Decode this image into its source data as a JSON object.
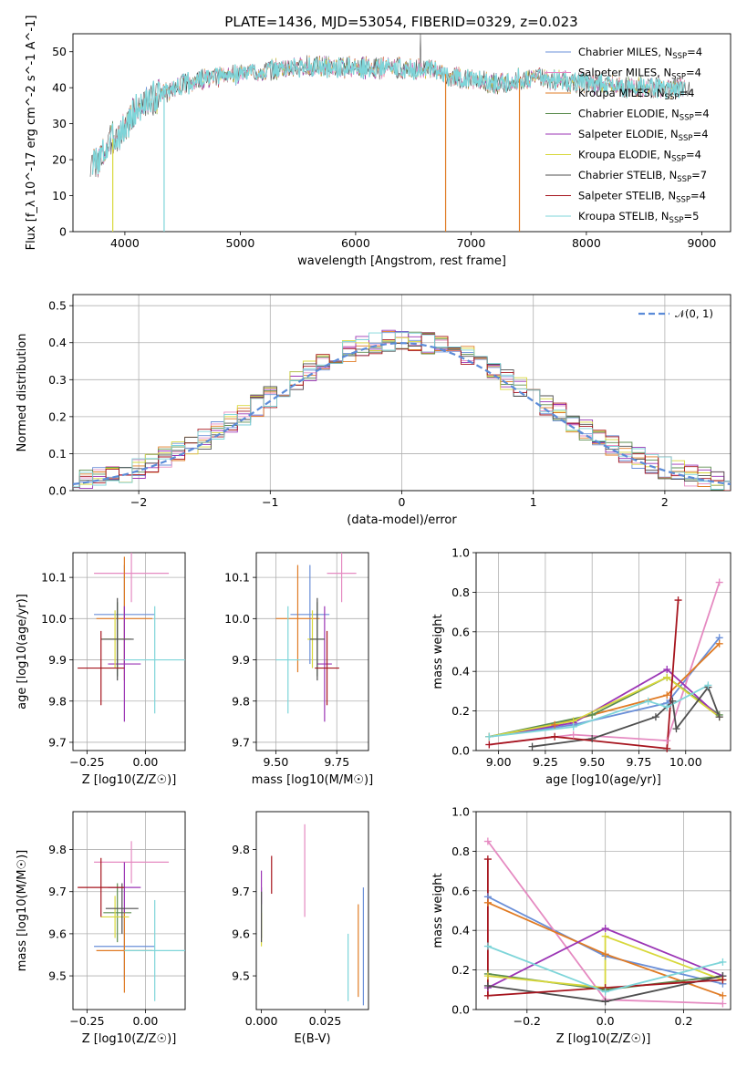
{
  "figure": {
    "title": "PLATE=1436, MJD=53054, FIBERID=0329, z=0.023"
  },
  "colors": [
    "#6a8fd8",
    "#e58ac1",
    "#e07b24",
    "#5c8d4f",
    "#9b35b5",
    "#d8d83c",
    "#4f4f4f",
    "#a6151e",
    "#7ed5d9"
  ],
  "chart_data": [
    {
      "id": "spectrum",
      "type": "line",
      "title": "PLATE=1436, MJD=53054, FIBERID=0329, z=0.023",
      "xlabel": "wavelength [Angstrom, rest frame]",
      "ylabel": "Flux [f_λ 10^-17 erg cm^-2 s^-1 A^-1]",
      "xlim": [
        3550,
        9250
      ],
      "ylim": [
        0,
        55
      ],
      "xticks": [
        4000,
        5000,
        6000,
        7000,
        8000,
        9000
      ],
      "yticks": [
        0,
        10,
        20,
        30,
        40,
        50
      ],
      "grid": false,
      "legend_position": "top-right",
      "series": [
        {
          "name": "Chabrier MILES, N_SSP=4",
          "legend_label": "Chabrier MILES, N",
          "legend_sub": "SSP",
          "legend_end": "=4"
        },
        {
          "name": "Salpeter MILES, N_SSP=4",
          "legend_label": "Salpeter MILES, N",
          "legend_sub": "SSP",
          "legend_end": "=4"
        },
        {
          "name": "Kroupa MILES, N_SSP=4",
          "legend_label": "Kroupa MILES, N",
          "legend_sub": "SSP",
          "legend_end": "=4"
        },
        {
          "name": "Chabrier ELODIE, N_SSP=4",
          "legend_label": "Chabrier ELODIE, N",
          "legend_sub": "SSP",
          "legend_end": "=4"
        },
        {
          "name": "Salpeter ELODIE, N_SSP=4",
          "legend_label": "Salpeter ELODIE, N",
          "legend_sub": "SSP",
          "legend_end": "=4"
        },
        {
          "name": "Kroupa ELODIE, N_SSP=4",
          "legend_label": "Kroupa ELODIE, N",
          "legend_sub": "SSP",
          "legend_end": "=4"
        },
        {
          "name": "Chabrier STELIB, N_SSP=7",
          "legend_label": "Chabrier STELIB, N",
          "legend_sub": "SSP",
          "legend_end": "=7"
        },
        {
          "name": "Salpeter STELIB, N_SSP=4",
          "legend_label": "Salpeter STELIB, N",
          "legend_sub": "SSP",
          "legend_end": "=4"
        },
        {
          "name": "Kroupa STELIB, N_SSP=5",
          "legend_label": "Kroupa STELIB, N",
          "legend_sub": "SSP",
          "legend_end": "=5"
        }
      ],
      "continuum": {
        "x": [
          3700,
          3800,
          3900,
          4000,
          4100,
          4300,
          4500,
          4800,
          5000,
          5300,
          5600,
          6000,
          6300,
          6600,
          6900,
          7200,
          7500,
          7800,
          8100,
          8400,
          8700,
          9000
        ],
        "y": [
          18,
          21,
          26,
          29,
          34,
          38,
          41,
          43,
          44,
          45,
          46,
          45.5,
          45.5,
          45,
          43,
          41,
          43,
          42,
          41,
          40,
          40,
          40
        ]
      },
      "dips": [
        {
          "x": 3895,
          "y": 0,
          "series": 5
        },
        {
          "x": 4340,
          "y": 0,
          "series": 8
        },
        {
          "x": 6780,
          "y": 0,
          "series": 2
        },
        {
          "x": 7420,
          "y": 0,
          "series": 2
        }
      ],
      "peak": {
        "x": 6590,
        "y": 55
      }
    },
    {
      "id": "residual_histogram",
      "type": "bar",
      "xlabel": "(data-model)/error",
      "ylabel": "Normed distribution",
      "xlim": [
        -2.5,
        2.5
      ],
      "ylim": [
        0,
        0.53
      ],
      "xticks": [
        -2,
        -1,
        0,
        1,
        2
      ],
      "yticks": [
        0.0,
        0.1,
        0.2,
        0.3,
        0.4,
        0.5
      ],
      "grid": true,
      "legend_position": "top-right",
      "reference_curve": {
        "name": "N(0,1)",
        "label": "𝒩(0, 1)",
        "mean": 0,
        "sigma": 1
      },
      "bin_width": 0.1,
      "bin_centers_range": [
        -2.5,
        2.5
      ],
      "series_note": "nine histograms, one per SSP model, same colours as spectrum"
    },
    {
      "id": "age_vs_Z",
      "type": "scatter",
      "xlabel": "Z [log10(Z/Z☉)]",
      "ylabel": "age [log10(age/yr)]",
      "xlim": [
        -0.31,
        0.17
      ],
      "ylim": [
        9.68,
        10.16
      ],
      "xticks": [
        -0.25,
        0.0
      ],
      "yticks": [
        9.7,
        9.8,
        9.9,
        10.0,
        10.1
      ],
      "grid": true,
      "points": [
        {
          "x": -0.09,
          "y": 10.01,
          "xerr": 0.13,
          "yerr": 0.12,
          "series": 0
        },
        {
          "x": -0.06,
          "y": 10.11,
          "xerr": 0.16,
          "yerr": 0.07,
          "series": 1
        },
        {
          "x": -0.09,
          "y": 10.0,
          "xerr": 0.12,
          "yerr": 0.15,
          "series": 2
        },
        {
          "x": -0.12,
          "y": 9.95,
          "xerr": 0.06,
          "yerr": 0.09,
          "series": 3
        },
        {
          "x": -0.09,
          "y": 9.89,
          "xerr": 0.07,
          "yerr": 0.14,
          "series": 4
        },
        {
          "x": -0.13,
          "y": 9.95,
          "xerr": 0.06,
          "yerr": 0.07,
          "series": 5
        },
        {
          "x": -0.12,
          "y": 9.95,
          "xerr": 0.07,
          "yerr": 0.1,
          "series": 6
        },
        {
          "x": -0.19,
          "y": 9.88,
          "xerr": 0.1,
          "yerr": 0.09,
          "series": 7
        },
        {
          "x": 0.04,
          "y": 9.9,
          "xerr": 0.13,
          "yerr": 0.13,
          "series": 8
        }
      ]
    },
    {
      "id": "age_vs_mass",
      "type": "scatter",
      "xlabel": "mass [log10(M/M☉)]",
      "ylabel": "",
      "xlim": [
        9.42,
        9.88
      ],
      "ylim": [
        9.68,
        10.16
      ],
      "xticks": [
        9.5,
        9.75
      ],
      "yticks": [
        9.7,
        9.8,
        9.9,
        10.0,
        10.1
      ],
      "grid": true,
      "points": [
        {
          "x": 9.64,
          "y": 10.01,
          "xerr": 0.08,
          "yerr": 0.12,
          "series": 0
        },
        {
          "x": 9.77,
          "y": 10.11,
          "xerr": 0.06,
          "yerr": 0.07,
          "series": 1
        },
        {
          "x": 9.59,
          "y": 10.0,
          "xerr": 0.09,
          "yerr": 0.13,
          "series": 2
        },
        {
          "x": 9.67,
          "y": 9.95,
          "xerr": 0.03,
          "yerr": 0.09,
          "series": 3
        },
        {
          "x": 9.7,
          "y": 9.89,
          "xerr": 0.03,
          "yerr": 0.14,
          "series": 4
        },
        {
          "x": 9.65,
          "y": 9.95,
          "xerr": 0.02,
          "yerr": 0.07,
          "series": 5
        },
        {
          "x": 9.67,
          "y": 9.95,
          "xerr": 0.03,
          "yerr": 0.1,
          "series": 6
        },
        {
          "x": 9.71,
          "y": 9.88,
          "xerr": 0.05,
          "yerr": 0.09,
          "series": 7
        },
        {
          "x": 9.55,
          "y": 9.9,
          "xerr": 0.05,
          "yerr": 0.13,
          "series": 8
        }
      ]
    },
    {
      "id": "weight_vs_age",
      "type": "line",
      "xlabel": "age [log10(age/yr)]",
      "ylabel": "mass weight",
      "xlim": [
        8.88,
        10.24
      ],
      "ylim": [
        0,
        1.0
      ],
      "xticks": [
        9.0,
        9.25,
        9.5,
        9.75,
        10.0
      ],
      "yticks": [
        0.0,
        0.2,
        0.4,
        0.6,
        0.8,
        1.0
      ],
      "grid": true,
      "series": [
        {
          "series": 0,
          "x": [
            8.95,
            9.4,
            9.9,
            10.18
          ],
          "y": [
            0.07,
            0.13,
            0.24,
            0.57
          ]
        },
        {
          "series": 1,
          "x": [
            8.95,
            9.4,
            9.9,
            10.18
          ],
          "y": [
            0.03,
            0.08,
            0.05,
            0.85
          ]
        },
        {
          "series": 2,
          "x": [
            8.95,
            9.3,
            9.9,
            10.18
          ],
          "y": [
            0.07,
            0.13,
            0.28,
            0.54
          ]
        },
        {
          "series": 3,
          "x": [
            8.95,
            9.5,
            9.9,
            10.18
          ],
          "y": [
            0.07,
            0.18,
            0.37,
            0.18
          ]
        },
        {
          "series": 4,
          "x": [
            8.95,
            9.4,
            9.9,
            10.18
          ],
          "y": [
            0.07,
            0.14,
            0.41,
            0.17
          ]
        },
        {
          "series": 5,
          "x": [
            8.95,
            9.4,
            9.9,
            10.18
          ],
          "y": [
            0.07,
            0.15,
            0.37,
            0.17
          ]
        },
        {
          "series": 6,
          "x": [
            9.18,
            9.5,
            9.84,
            9.93,
            9.95,
            10.12,
            10.18
          ],
          "y": [
            0.02,
            0.06,
            0.17,
            0.25,
            0.11,
            0.32,
            0.17
          ]
        },
        {
          "series": 7,
          "x": [
            8.95,
            9.3,
            9.9,
            9.96
          ],
          "y": [
            0.03,
            0.07,
            0.01,
            0.76
          ]
        },
        {
          "series": 8,
          "x": [
            8.95,
            9.4,
            9.8,
            9.9,
            10.12
          ],
          "y": [
            0.07,
            0.12,
            0.25,
            0.22,
            0.33
          ]
        }
      ]
    },
    {
      "id": "mass_vs_Z",
      "type": "scatter",
      "xlabel": "Z [log10(Z/Z☉)]",
      "ylabel": "mass [log10(M/M☉)]",
      "xlim": [
        -0.31,
        0.17
      ],
      "ylim": [
        9.42,
        9.89
      ],
      "xticks": [
        -0.25,
        0.0
      ],
      "yticks": [
        9.5,
        9.6,
        9.7,
        9.8
      ],
      "grid": true,
      "points": [
        {
          "x": -0.09,
          "y": 9.57,
          "xerr": 0.13,
          "yerr": 0.08,
          "series": 0
        },
        {
          "x": -0.06,
          "y": 9.77,
          "xerr": 0.16,
          "yerr": 0.05,
          "series": 1
        },
        {
          "x": -0.09,
          "y": 9.56,
          "xerr": 0.12,
          "yerr": 0.1,
          "series": 2
        },
        {
          "x": -0.12,
          "y": 9.65,
          "xerr": 0.06,
          "yerr": 0.07,
          "series": 3
        },
        {
          "x": -0.09,
          "y": 9.71,
          "xerr": 0.07,
          "yerr": 0.06,
          "series": 4
        },
        {
          "x": -0.13,
          "y": 9.64,
          "xerr": 0.06,
          "yerr": 0.05,
          "series": 5
        },
        {
          "x": -0.1,
          "y": 9.66,
          "xerr": 0.07,
          "yerr": 0.06,
          "series": 6
        },
        {
          "x": -0.19,
          "y": 9.71,
          "xerr": 0.1,
          "yerr": 0.07,
          "series": 7
        },
        {
          "x": 0.04,
          "y": 9.56,
          "xerr": 0.13,
          "yerr": 0.12,
          "series": 8
        }
      ]
    },
    {
      "id": "mass_vs_ebv",
      "type": "scatter",
      "xlabel": "E(B-V)",
      "ylabel": "",
      "xlim": [
        -0.002,
        0.042
      ],
      "ylim": [
        9.42,
        9.89
      ],
      "xticks": [
        0.0,
        0.025
      ],
      "yticks": [
        9.5,
        9.6,
        9.7,
        9.8
      ],
      "grid": false,
      "points": [
        {
          "x": 0.04,
          "y": 9.57,
          "yerr": 0.14,
          "series": 0
        },
        {
          "x": 0.017,
          "y": 9.75,
          "yerr": 0.11,
          "series": 1
        },
        {
          "x": 0.038,
          "y": 9.56,
          "yerr": 0.11,
          "series": 2
        },
        {
          "x": 0.0,
          "y": 9.65,
          "yerr": 0.06,
          "series": 3
        },
        {
          "x": 0.0,
          "y": 9.71,
          "yerr": 0.04,
          "series": 4
        },
        {
          "x": 0.0,
          "y": 9.61,
          "yerr": 0.04,
          "series": 5
        },
        {
          "x": 0.0,
          "y": 9.64,
          "yerr": 0.06,
          "series": 6
        },
        {
          "x": 0.004,
          "y": 9.74,
          "yerr": 0.045,
          "series": 7
        },
        {
          "x": 0.034,
          "y": 9.52,
          "yerr": 0.08,
          "series": 8
        }
      ]
    },
    {
      "id": "weight_vs_Z",
      "type": "line",
      "xlabel": "Z [log10(Z/Z☉)]",
      "ylabel": "mass weight",
      "xlim": [
        -0.33,
        0.32
      ],
      "ylim": [
        0,
        1.0
      ],
      "xticks": [
        -0.2,
        0.0,
        0.2
      ],
      "yticks": [
        0.0,
        0.2,
        0.4,
        0.6,
        0.8,
        1.0
      ],
      "grid": true,
      "series": [
        {
          "series": 0,
          "x": [
            -0.3,
            0.0,
            0.3
          ],
          "y": [
            0.57,
            0.27,
            0.13
          ]
        },
        {
          "series": 1,
          "x": [
            -0.3,
            0.0,
            0.3
          ],
          "y": [
            0.85,
            0.05,
            0.03
          ]
        },
        {
          "series": 2,
          "x": [
            -0.3,
            0.0,
            0.3
          ],
          "y": [
            0.54,
            0.28,
            0.07
          ]
        },
        {
          "series": 3,
          "x": [
            -0.3,
            0.0,
            0.3
          ],
          "y": [
            0.18,
            0.1,
            0.17
          ]
        },
        {
          "series": 4,
          "x": [
            -0.3,
            0.0,
            0.3
          ],
          "y": [
            0.11,
            0.41,
            0.17
          ]
        },
        {
          "series": 5,
          "x": [
            -0.3,
            0.0,
            0.0,
            0.3
          ],
          "y": [
            0.17,
            0.11,
            0.37,
            0.15
          ]
        },
        {
          "series": 6,
          "x": [
            -0.3,
            0.0,
            0.3
          ],
          "y": [
            0.12,
            0.04,
            0.17
          ]
        },
        {
          "series": 7,
          "x": [
            -0.3,
            -0.3,
            0.0,
            0.3
          ],
          "y": [
            0.76,
            0.07,
            0.11,
            0.15
          ]
        },
        {
          "series": 8,
          "x": [
            -0.3,
            0.0,
            0.3
          ],
          "y": [
            0.32,
            0.09,
            0.24
          ]
        }
      ]
    }
  ]
}
